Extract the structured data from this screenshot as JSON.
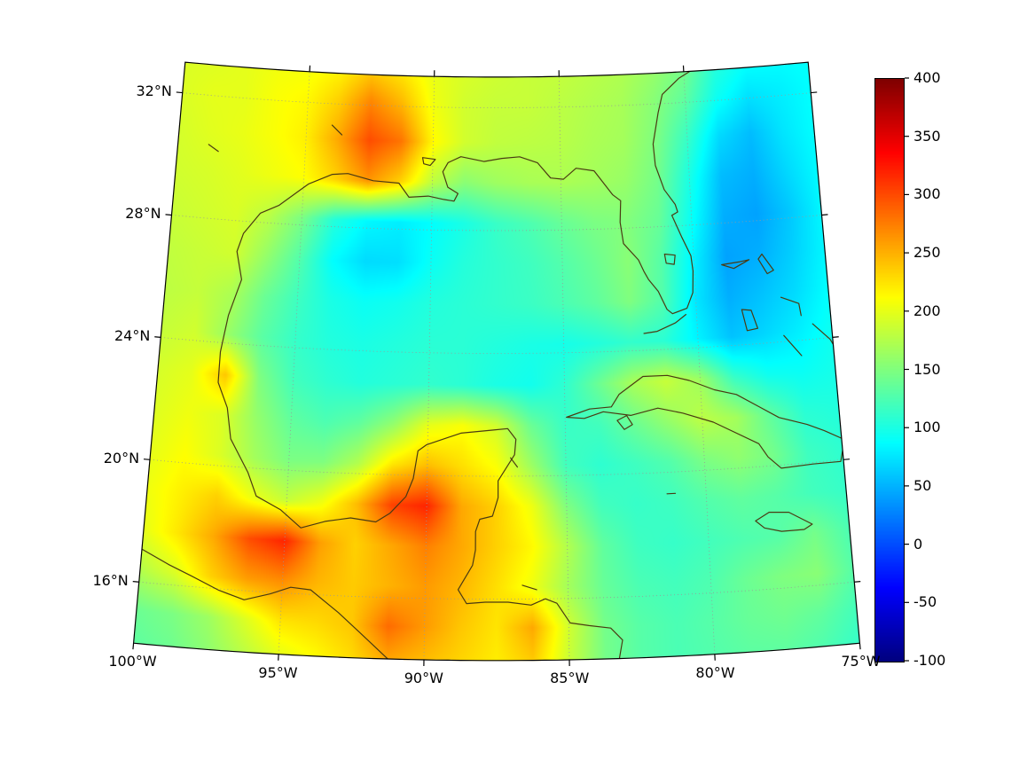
{
  "figure": {
    "background": "#ffffff"
  },
  "colors": {
    "coastline": "#4a3a12",
    "boundary": "#000000",
    "gridline": "#999999",
    "tick": "#000000",
    "label": "#000000"
  },
  "chart_data": {
    "type": "heatmap",
    "title": "",
    "description": "Filled-color geographic field over the Gulf of Mexico / Caribbean region, jet colormap, with coastlines, dotted graticule and vertical colorbar",
    "projection": {
      "kind": "equidistant-conic",
      "center_lon": -87.5,
      "standard_parallels": [
        20,
        30
      ],
      "extent": {
        "lon_min": -100,
        "lon_max": -75,
        "lat_min": 14,
        "lat_max": 33
      }
    },
    "colormap": "jet",
    "value_range": [
      -100,
      400
    ],
    "colorbar_ticks": [
      400,
      350,
      300,
      250,
      200,
      150,
      100,
      50,
      0,
      -50,
      -100
    ],
    "axis": {
      "lat_ticks": [
        {
          "value": 32,
          "label": "32°N"
        },
        {
          "value": 28,
          "label": "28°N"
        },
        {
          "value": 24,
          "label": "24°N"
        },
        {
          "value": 20,
          "label": "20°N"
        },
        {
          "value": 16,
          "label": "16°N"
        }
      ],
      "lon_ticks": [
        {
          "value": -100,
          "label": "100°W"
        },
        {
          "value": -95,
          "label": "95°W"
        },
        {
          "value": -90,
          "label": "90°W"
        },
        {
          "value": -85,
          "label": "85°W"
        },
        {
          "value": -80,
          "label": "80°W"
        },
        {
          "value": -75,
          "label": "75°W"
        }
      ],
      "grid_lats": [
        16,
        20,
        24,
        28,
        32
      ],
      "grid_lons": [
        -95,
        -90,
        -85,
        -80
      ]
    },
    "grid": {
      "lon_start": -100,
      "lon_step": 1.25,
      "lat_start": 33.5,
      "lat_step": -1.31667,
      "ncols": 21,
      "nrows": 16,
      "values": [
        [
          195,
          195,
          200,
          205,
          205,
          210,
          225,
          215,
          200,
          195,
          190,
          185,
          185,
          180,
          175,
          165,
          150,
          110,
          95,
          90,
          90
        ],
        [
          195,
          200,
          200,
          210,
          215,
          235,
          270,
          245,
          205,
          190,
          185,
          185,
          180,
          175,
          170,
          155,
          135,
          95,
          75,
          80,
          88
        ],
        [
          192,
          198,
          202,
          210,
          220,
          255,
          300,
          280,
          215,
          190,
          182,
          180,
          178,
          172,
          168,
          150,
          115,
          70,
          55,
          75,
          88
        ],
        [
          190,
          193,
          198,
          205,
          212,
          235,
          265,
          235,
          180,
          155,
          165,
          170,
          172,
          168,
          162,
          145,
          100,
          55,
          48,
          68,
          86
        ],
        [
          186,
          190,
          194,
          178,
          148,
          105,
          85,
          80,
          88,
          100,
          115,
          125,
          138,
          148,
          152,
          138,
          92,
          48,
          42,
          60,
          84
        ],
        [
          182,
          186,
          190,
          160,
          128,
          88,
          70,
          72,
          92,
          105,
          112,
          118,
          128,
          140,
          155,
          130,
          82,
          42,
          48,
          64,
          84
        ],
        [
          180,
          184,
          172,
          140,
          118,
          100,
          92,
          96,
          104,
          108,
          112,
          116,
          124,
          134,
          150,
          128,
          76,
          48,
          58,
          70,
          88
        ],
        [
          184,
          190,
          162,
          132,
          114,
          104,
          100,
          104,
          108,
          108,
          104,
          100,
          98,
          104,
          112,
          108,
          82,
          58,
          68,
          80,
          94
        ],
        [
          192,
          200,
          240,
          150,
          120,
          110,
          104,
          108,
          112,
          108,
          100,
          96,
          110,
          140,
          170,
          185,
          165,
          115,
          95,
          92,
          98
        ],
        [
          196,
          205,
          195,
          160,
          135,
          125,
          135,
          160,
          200,
          210,
          190,
          140,
          115,
          120,
          140,
          160,
          180,
          168,
          135,
          108,
          104
        ],
        [
          200,
          212,
          195,
          168,
          148,
          150,
          175,
          225,
          245,
          228,
          210,
          165,
          120,
          110,
          118,
          128,
          148,
          158,
          145,
          118,
          110
        ],
        [
          205,
          220,
          235,
          205,
          185,
          205,
          245,
          305,
          320,
          255,
          235,
          205,
          150,
          120,
          114,
          118,
          128,
          135,
          130,
          120,
          114
        ],
        [
          200,
          225,
          255,
          300,
          320,
          260,
          235,
          255,
          275,
          255,
          235,
          215,
          175,
          135,
          118,
          114,
          120,
          126,
          130,
          145,
          125
        ],
        [
          175,
          195,
          235,
          260,
          268,
          248,
          238,
          250,
          262,
          248,
          228,
          205,
          168,
          138,
          124,
          120,
          126,
          140,
          150,
          155,
          130
        ],
        [
          140,
          148,
          165,
          195,
          225,
          230,
          240,
          285,
          262,
          240,
          225,
          255,
          190,
          145,
          130,
          124,
          130,
          138,
          142,
          135,
          120
        ],
        [
          132,
          140,
          155,
          175,
          195,
          210,
          228,
          250,
          242,
          232,
          220,
          235,
          185,
          145,
          130,
          124,
          128,
          132,
          132,
          125,
          112
        ]
      ]
    },
    "coastlines": [
      [
        [
          -79.3,
          33.2
        ],
        [
          -80.2,
          32.8
        ],
        [
          -80.9,
          32.3
        ],
        [
          -81.1,
          31.7
        ],
        [
          -81.35,
          30.7
        ],
        [
          -81.3,
          30.0
        ],
        [
          -81.0,
          29.2
        ],
        [
          -80.6,
          28.7
        ],
        [
          -80.52,
          28.45
        ],
        [
          -80.75,
          28.35
        ],
        [
          -80.4,
          27.6
        ],
        [
          -80.1,
          27.0
        ],
        [
          -80.05,
          26.5
        ],
        [
          -80.1,
          25.8
        ],
        [
          -80.35,
          25.3
        ],
        [
          -80.9,
          25.15
        ],
        [
          -81.1,
          25.3
        ],
        [
          -81.4,
          25.9
        ],
        [
          -81.75,
          26.3
        ],
        [
          -81.9,
          26.55
        ],
        [
          -82.1,
          26.95
        ],
        [
          -82.65,
          27.5
        ],
        [
          -82.75,
          28.2
        ],
        [
          -82.7,
          28.9
        ],
        [
          -83.0,
          29.1
        ],
        [
          -83.7,
          29.9
        ],
        [
          -84.4,
          30.0
        ],
        [
          -84.9,
          29.65
        ],
        [
          -85.4,
          29.7
        ],
        [
          -85.9,
          30.2
        ],
        [
          -86.6,
          30.4
        ],
        [
          -87.3,
          30.35
        ],
        [
          -88.0,
          30.25
        ],
        [
          -88.9,
          30.4
        ],
        [
          -89.4,
          30.2
        ],
        [
          -89.6,
          29.9
        ],
        [
          -89.4,
          29.4
        ],
        [
          -89.0,
          29.2
        ],
        [
          -89.15,
          28.95
        ],
        [
          -89.55,
          29.0
        ],
        [
          -90.15,
          29.1
        ],
        [
          -90.9,
          29.05
        ],
        [
          -91.3,
          29.5
        ],
        [
          -92.3,
          29.55
        ],
        [
          -93.3,
          29.75
        ],
        [
          -93.9,
          29.7
        ],
        [
          -94.8,
          29.35
        ],
        [
          -95.1,
          29.15
        ],
        [
          -95.9,
          28.6
        ],
        [
          -96.6,
          28.3
        ],
        [
          -97.2,
          27.6
        ],
        [
          -97.4,
          27.0
        ],
        [
          -97.15,
          26.1
        ],
        [
          -97.55,
          24.9
        ],
        [
          -97.75,
          23.7
        ],
        [
          -97.75,
          22.7
        ],
        [
          -97.35,
          21.9
        ],
        [
          -97.15,
          20.9
        ],
        [
          -96.45,
          19.85
        ],
        [
          -96.1,
          19.1
        ],
        [
          -95.2,
          18.7
        ],
        [
          -94.45,
          18.15
        ],
        [
          -93.6,
          18.4
        ],
        [
          -92.7,
          18.55
        ],
        [
          -91.8,
          18.45
        ],
        [
          -91.3,
          18.75
        ],
        [
          -90.75,
          19.3
        ],
        [
          -90.5,
          19.9
        ],
        [
          -90.35,
          20.8
        ],
        [
          -90.05,
          21.0
        ],
        [
          -88.8,
          21.4
        ],
        [
          -87.7,
          21.5
        ],
        [
          -87.1,
          21.55
        ],
        [
          -86.8,
          21.2
        ],
        [
          -86.85,
          20.7
        ],
        [
          -87.45,
          19.85
        ],
        [
          -87.45,
          19.3
        ],
        [
          -87.65,
          18.7
        ],
        [
          -88.1,
          18.6
        ],
        [
          -88.25,
          18.2
        ],
        [
          -88.25,
          17.6
        ],
        [
          -88.35,
          17.1
        ],
        [
          -88.85,
          16.3
        ],
        [
          -88.55,
          15.85
        ],
        [
          -87.9,
          15.9
        ],
        [
          -87.1,
          15.9
        ],
        [
          -86.3,
          15.8
        ],
        [
          -85.8,
          16.0
        ],
        [
          -85.4,
          15.85
        ],
        [
          -84.95,
          15.2
        ],
        [
          -84.3,
          15.1
        ],
        [
          -83.55,
          15.0
        ],
        [
          -83.15,
          14.6
        ],
        [
          -83.3,
          13.9
        ]
      ],
      [
        [
          -100.3,
          17.2
        ],
        [
          -99.0,
          16.65
        ],
        [
          -98.2,
          16.35
        ],
        [
          -97.2,
          15.95
        ],
        [
          -96.3,
          15.7
        ],
        [
          -95.4,
          15.95
        ],
        [
          -94.7,
          16.2
        ],
        [
          -94.0,
          16.15
        ],
        [
          -93.0,
          15.45
        ],
        [
          -92.2,
          14.8
        ],
        [
          -91.3,
          14.05
        ],
        [
          -91.0,
          13.8
        ]
      ],
      [
        [
          -84.95,
          21.9
        ],
        [
          -84.1,
          22.15
        ],
        [
          -83.3,
          22.2
        ],
        [
          -83.0,
          22.6
        ],
        [
          -82.1,
          23.15
        ],
        [
          -81.2,
          23.15
        ],
        [
          -80.4,
          22.95
        ],
        [
          -79.5,
          22.6
        ],
        [
          -78.7,
          22.4
        ],
        [
          -77.9,
          21.95
        ],
        [
          -77.2,
          21.55
        ],
        [
          -76.2,
          21.25
        ],
        [
          -75.6,
          21.0
        ],
        [
          -74.9,
          20.65
        ],
        [
          -75.1,
          19.95
        ],
        [
          -76.1,
          19.95
        ],
        [
          -77.25,
          19.9
        ],
        [
          -77.7,
          20.3
        ],
        [
          -78.0,
          20.75
        ],
        [
          -79.6,
          21.55
        ],
        [
          -80.7,
          21.9
        ],
        [
          -81.6,
          22.1
        ],
        [
          -82.6,
          21.9
        ],
        [
          -83.6,
          22.05
        ],
        [
          -84.3,
          21.85
        ],
        [
          -84.95,
          21.9
        ]
      ],
      [
        [
          -78.3,
          18.25
        ],
        [
          -77.8,
          18.5
        ],
        [
          -77.1,
          18.45
        ],
        [
          -76.3,
          18.0
        ],
        [
          -76.6,
          17.85
        ],
        [
          -77.4,
          17.85
        ],
        [
          -78.0,
          18.0
        ],
        [
          -78.3,
          18.25
        ]
      ],
      [
        [
          -83.1,
          21.75
        ],
        [
          -82.75,
          21.9
        ],
        [
          -82.55,
          21.6
        ],
        [
          -82.85,
          21.45
        ],
        [
          -83.1,
          21.75
        ]
      ],
      [
        [
          -74.8,
          19.95
        ],
        [
          -74.4,
          19.7
        ]
      ],
      [
        [
          -74.8,
          18.4
        ],
        [
          -74.3,
          18.3
        ]
      ],
      [
        [
          -78.95,
          26.65
        ],
        [
          -78.3,
          26.7
        ],
        [
          -77.9,
          26.75
        ],
        [
          -78.5,
          26.5
        ],
        [
          -78.95,
          26.65
        ]
      ],
      [
        [
          -77.4,
          26.9
        ],
        [
          -77.0,
          26.35
        ],
        [
          -77.25,
          26.25
        ],
        [
          -77.55,
          26.75
        ],
        [
          -77.4,
          26.9
        ]
      ],
      [
        [
          -78.3,
          25.15
        ],
        [
          -77.95,
          25.1
        ],
        [
          -77.75,
          24.5
        ],
        [
          -78.15,
          24.45
        ],
        [
          -78.3,
          25.15
        ]
      ],
      [
        [
          -76.8,
          25.45
        ],
        [
          -76.15,
          25.2
        ],
        [
          -76.1,
          24.8
        ]
      ],
      [
        [
          -75.7,
          24.5
        ],
        [
          -75.1,
          23.95
        ],
        [
          -74.9,
          23.6
        ]
      ],
      [
        [
          -76.8,
          24.2
        ],
        [
          -76.2,
          23.5
        ]
      ],
      [
        [
          -80.4,
          25.1
        ],
        [
          -80.8,
          24.85
        ],
        [
          -81.5,
          24.6
        ],
        [
          -82.0,
          24.55
        ]
      ],
      [
        [
          -81.1,
          27.1
        ],
        [
          -80.7,
          27.05
        ],
        [
          -80.75,
          26.75
        ],
        [
          -81.05,
          26.8
        ],
        [
          -81.1,
          27.1
        ]
      ],
      [
        [
          -90.4,
          30.35
        ],
        [
          -89.9,
          30.3
        ],
        [
          -90.1,
          30.1
        ],
        [
          -90.35,
          30.15
        ],
        [
          -90.4,
          30.35
        ]
      ],
      [
        [
          -94.0,
          31.3
        ],
        [
          -93.6,
          31.0
        ]
      ],
      [
        [
          -98.8,
          30.4
        ],
        [
          -98.4,
          30.2
        ]
      ],
      [
        [
          -87.0,
          20.6
        ],
        [
          -86.75,
          20.3
        ]
      ],
      [
        [
          -86.6,
          16.45
        ],
        [
          -86.1,
          16.3
        ]
      ],
      [
        [
          -81.4,
          19.3
        ],
        [
          -81.1,
          19.3
        ]
      ]
    ]
  }
}
